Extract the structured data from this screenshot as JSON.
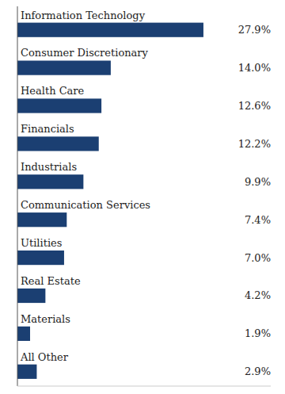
{
  "chart_data": {
    "type": "bar",
    "orientation": "horizontal",
    "categories": [
      "Information Technology",
      "Consumer Discretionary",
      "Health Care",
      "Financials",
      "Industrials",
      "Communication Services",
      "Utilities",
      "Real Estate",
      "Materials",
      "All Other"
    ],
    "values": [
      27.9,
      14.0,
      12.6,
      12.2,
      9.9,
      7.4,
      7.0,
      4.2,
      1.9,
      2.9
    ],
    "value_labels": [
      "27.9%",
      "14.0%",
      "12.6%",
      "12.2%",
      "9.9%",
      "7.4%",
      "7.0%",
      "4.2%",
      "1.9%",
      "2.9%"
    ],
    "color": "#1B3F72",
    "xlim": [
      0,
      38
    ],
    "data_labels": true,
    "tick_labels": false,
    "grid": false
  }
}
